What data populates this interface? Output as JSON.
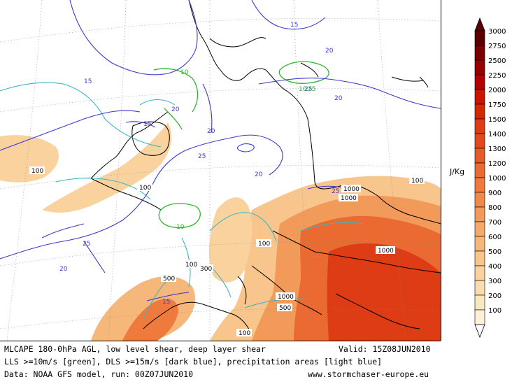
{
  "caption": {
    "line1": "MLCAPE 180-0hPa AGL, low level shear, deep layer shear",
    "valid": "Valid: 15Z08JUN2010",
    "line2": "LLS >=10m/s [green], DLS >=15m/s [dark blue], precipitation areas [light blue]",
    "line3": "Data: NOAA GFS model, run: 00Z07JUN2010",
    "website": "www.stormchaser-europe.eu"
  },
  "legend": {
    "unit": "J/Kg",
    "levels": [
      "3000",
      "2750",
      "2500",
      "2250",
      "2000",
      "1750",
      "1500",
      "1400",
      "1300",
      "1200",
      "1000",
      "900",
      "800",
      "700",
      "600",
      "500",
      "400",
      "300",
      "200",
      "100"
    ],
    "colors": [
      "#5a0000",
      "#7a0000",
      "#990000",
      "#b30000",
      "#c81400",
      "#d42800",
      "#de3c14",
      "#e24a1e",
      "#e65a28",
      "#ea6a32",
      "#ee7a3e",
      "#f08a4c",
      "#f29a5a",
      "#f4aa6a",
      "#f6b87a",
      "#f8c68c",
      "#f9d29e",
      "#fbdcae",
      "#fce6c0",
      "#fdf0d6"
    ]
  },
  "contour_labels": {
    "cape": [
      "100",
      "100",
      "100",
      "100",
      "100",
      "100",
      "300",
      "500",
      "500",
      "1000",
      "1000",
      "1000",
      "1000"
    ],
    "dls": [
      "15",
      "15",
      "15",
      "15",
      "20",
      "20",
      "20",
      "20",
      "20",
      "20",
      "25",
      "25",
      "25",
      "25"
    ],
    "lls": [
      "10",
      "10",
      "10",
      "25"
    ]
  },
  "colors": {
    "dls": "#3a3acc",
    "lls": "#2db52d",
    "precip": "#3cb4c8",
    "coast": "#000000"
  }
}
